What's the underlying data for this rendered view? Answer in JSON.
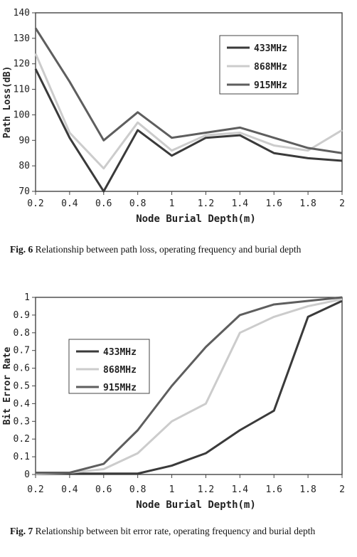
{
  "figures": [
    {
      "label": "Fig. 6",
      "caption": "Relationship between path loss, operating frequency and burial depth"
    },
    {
      "label": "Fig. 7",
      "caption": "Relationship between bit error rate, operating frequency and burial depth"
    }
  ],
  "chart_data": [
    {
      "type": "line",
      "title": "",
      "xlabel": "Node Burial Depth(m)",
      "ylabel": "Path Loss(dB)",
      "xlim": [
        0.2,
        2
      ],
      "ylim": [
        70,
        140
      ],
      "x": [
        0.2,
        0.4,
        0.6,
        0.8,
        1,
        1.2,
        1.4,
        1.6,
        1.8,
        2
      ],
      "x_tick_labels": [
        "0.2",
        "0.4",
        "0.6",
        "0.8",
        "1",
        "1.2",
        "1.4",
        "1.6",
        "1.8",
        "2"
      ],
      "y_ticks": [
        70,
        80,
        90,
        100,
        110,
        120,
        130,
        140
      ],
      "legend_position": "upper-right",
      "grid": false,
      "series": [
        {
          "name": "433MHz",
          "color": "#3a3a3a",
          "values": [
            118,
            91,
            70,
            94,
            84,
            91,
            92,
            85,
            83,
            82
          ]
        },
        {
          "name": "868MHz",
          "color": "#cccccc",
          "values": [
            124,
            93,
            79,
            97,
            86,
            92,
            93,
            88,
            86,
            94
          ]
        },
        {
          "name": "915MHz",
          "color": "#5e5e5e",
          "values": [
            134,
            113,
            90,
            101,
            91,
            93,
            95,
            91,
            87,
            85
          ]
        }
      ]
    },
    {
      "type": "line",
      "title": "",
      "xlabel": "Node Burial Depth(m)",
      "ylabel": "Bit Error Rate",
      "xlim": [
        0.2,
        2
      ],
      "ylim": [
        0,
        1
      ],
      "x": [
        0.2,
        0.4,
        0.6,
        0.8,
        1,
        1.2,
        1.4,
        1.6,
        1.8,
        2
      ],
      "x_tick_labels": [
        "0.2",
        "0.4",
        "0.6",
        "0.8",
        "1",
        "1.2",
        "1.4",
        "1.6",
        "1.8",
        "2"
      ],
      "y_ticks": [
        0,
        0.1,
        0.2,
        0.3,
        0.4,
        0.5,
        0.6,
        0.7,
        0.8,
        0.9,
        1
      ],
      "y_tick_labels": [
        "0",
        "0.1",
        "0.2",
        "0.3",
        "0.4",
        "0.5",
        "0.6",
        "0.7",
        "0.8",
        "0.9",
        "1"
      ],
      "legend_position": "upper-left",
      "grid": false,
      "series": [
        {
          "name": "433MHz",
          "color": "#3a3a3a",
          "values": [
            0.005,
            0.005,
            0.005,
            0.005,
            0.05,
            0.12,
            0.25,
            0.36,
            0.89,
            0.98
          ]
        },
        {
          "name": "868MHz",
          "color": "#cccccc",
          "values": [
            0.005,
            0.01,
            0.03,
            0.12,
            0.3,
            0.4,
            0.8,
            0.89,
            0.95,
            0.99
          ]
        },
        {
          "name": "915MHz",
          "color": "#5e5e5e",
          "values": [
            0.01,
            0.01,
            0.06,
            0.25,
            0.5,
            0.72,
            0.9,
            0.96,
            0.98,
            1.0
          ]
        }
      ]
    }
  ]
}
